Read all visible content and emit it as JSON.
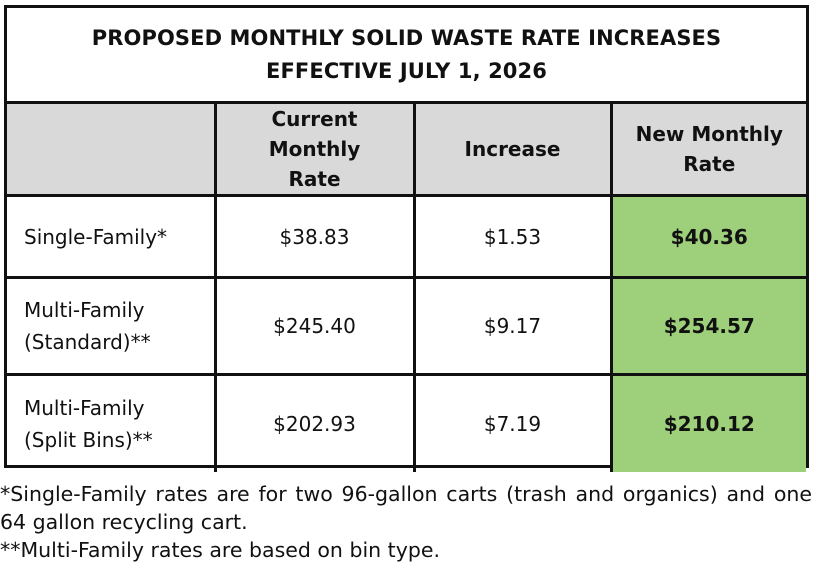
{
  "title": {
    "line1": "PROPOSED MONTHLY SOLID WASTE RATE INCREASES",
    "line2": "EFFECTIVE JULY 1, 2026"
  },
  "headers": {
    "blank": "",
    "current": "Current Monthly Rate",
    "increase": "Increase",
    "new": "New Monthly Rate"
  },
  "rows": [
    {
      "label_line1": "Single-Family*",
      "label_line2": "",
      "current": "$38.83",
      "increase": "$1.53",
      "new": "$40.36"
    },
    {
      "label_line1": "Multi-Family",
      "label_line2": "(Standard)**",
      "current": "$245.40",
      "increase": "$9.17",
      "new": "$254.57"
    },
    {
      "label_line1": "Multi-Family",
      "label_line2": "(Split Bins)**",
      "current": "$202.93",
      "increase": "$7.19",
      "new": "$210.12"
    }
  ],
  "notes": {
    "note1": "*Single-Family rates are for two 96-gallon carts (trash and organics) and one 64 gallon recycling cart.",
    "note2": "**Multi-Family rates are based on bin type."
  },
  "colors": {
    "header_bg": "#d9d9d9",
    "new_rate_bg": "#9ecf7a",
    "border": "#111111"
  }
}
